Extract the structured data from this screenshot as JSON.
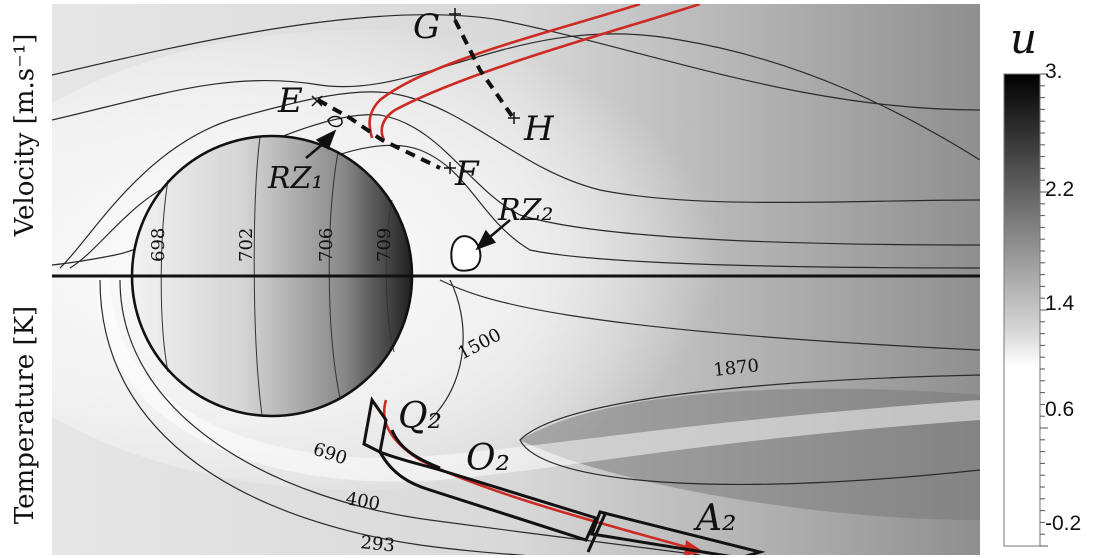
{
  "axes": {
    "upper_label": "Velocity [m.s⁻¹]",
    "lower_label": "Temperature [K]"
  },
  "colorbar": {
    "title": "u",
    "ticks": [
      "3.",
      "2.2",
      "1.4",
      "0.6",
      "-0.2"
    ]
  },
  "points": {
    "E": "E",
    "F": "F",
    "G": "G",
    "H": "H"
  },
  "regions": {
    "rz1": "RZ₁",
    "rz2": "RZ₂"
  },
  "zones": {
    "q": "Q₂",
    "o": "O₂",
    "a": "A₂"
  },
  "velocity_contours": [
    "698",
    "702",
    "706",
    "709"
  ],
  "temperature_contours": [
    "1500",
    "1870",
    "690",
    "400",
    "293"
  ],
  "colors": {
    "stream_red": "#cc2a22",
    "contour": "#222222"
  }
}
